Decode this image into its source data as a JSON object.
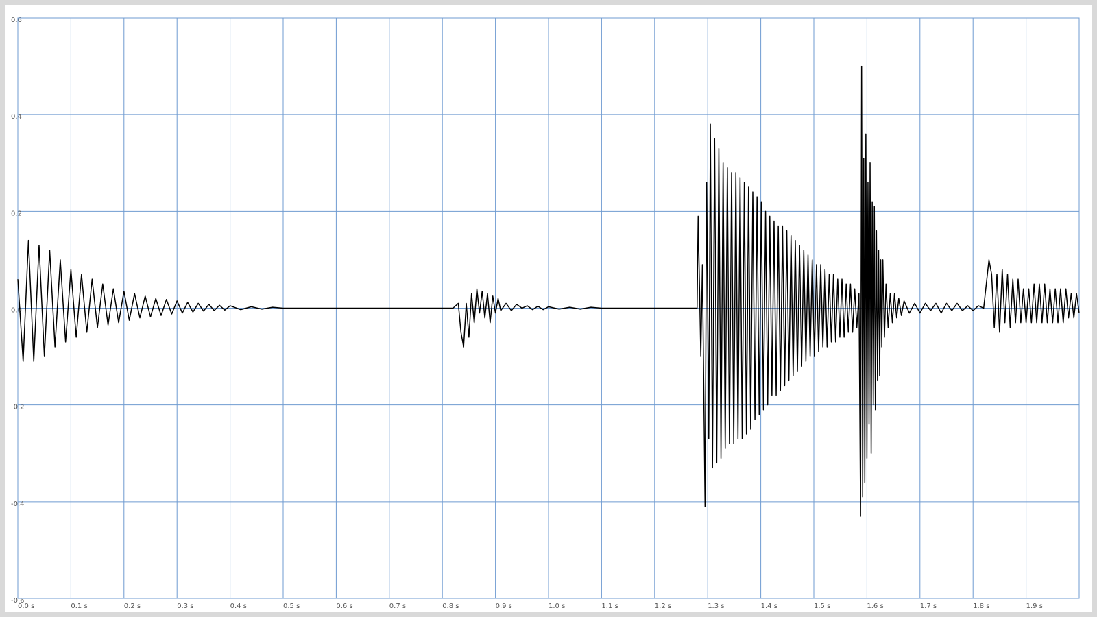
{
  "chart_data": {
    "type": "line",
    "x": [
      0,
      0.01,
      0.02,
      0.03,
      0.04,
      0.05,
      0.06,
      0.07,
      0.08,
      0.09,
      0.1,
      0.11,
      0.12,
      0.13,
      0.14,
      0.15,
      0.16,
      0.17,
      0.18,
      0.19,
      0.2,
      0.21,
      0.22,
      0.23,
      0.24,
      0.25,
      0.26,
      0.27,
      0.28,
      0.29,
      0.3,
      0.31,
      0.32,
      0.33,
      0.34,
      0.35,
      0.36,
      0.37,
      0.38,
      0.39,
      0.4,
      0.42,
      0.44,
      0.46,
      0.48,
      0.5,
      0.6,
      0.7,
      0.82,
      0.83,
      0.835,
      0.84,
      0.845,
      0.85,
      0.855,
      0.86,
      0.865,
      0.87,
      0.875,
      0.88,
      0.885,
      0.89,
      0.895,
      0.9,
      0.905,
      0.91,
      0.92,
      0.93,
      0.94,
      0.95,
      0.96,
      0.97,
      0.98,
      0.99,
      1.0,
      1.02,
      1.04,
      1.06,
      1.08,
      1.1,
      1.2,
      1.28,
      1.282,
      1.287,
      1.29,
      1.295,
      1.298,
      1.302,
      1.305,
      1.309,
      1.313,
      1.317,
      1.321,
      1.325,
      1.329,
      1.333,
      1.337,
      1.341,
      1.345,
      1.349,
      1.353,
      1.357,
      1.361,
      1.365,
      1.369,
      1.373,
      1.377,
      1.381,
      1.385,
      1.389,
      1.393,
      1.397,
      1.401,
      1.405,
      1.409,
      1.413,
      1.417,
      1.421,
      1.425,
      1.429,
      1.433,
      1.437,
      1.441,
      1.445,
      1.449,
      1.453,
      1.457,
      1.461,
      1.465,
      1.469,
      1.473,
      1.477,
      1.481,
      1.485,
      1.489,
      1.493,
      1.497,
      1.501,
      1.505,
      1.509,
      1.513,
      1.517,
      1.521,
      1.525,
      1.529,
      1.533,
      1.537,
      1.541,
      1.545,
      1.549,
      1.553,
      1.557,
      1.561,
      1.565,
      1.569,
      1.573,
      1.577,
      1.581,
      1.585,
      1.588,
      1.59,
      1.592,
      1.594,
      1.596,
      1.598,
      1.6,
      1.602,
      1.604,
      1.606,
      1.608,
      1.61,
      1.612,
      1.614,
      1.616,
      1.618,
      1.62,
      1.622,
      1.624,
      1.626,
      1.628,
      1.63,
      1.633,
      1.636,
      1.64,
      1.644,
      1.648,
      1.652,
      1.656,
      1.66,
      1.665,
      1.67,
      1.68,
      1.69,
      1.7,
      1.71,
      1.72,
      1.73,
      1.74,
      1.75,
      1.76,
      1.77,
      1.78,
      1.79,
      1.8,
      1.81,
      1.82,
      1.83,
      1.835,
      1.84,
      1.845,
      1.85,
      1.855,
      1.86,
      1.865,
      1.87,
      1.875,
      1.88,
      1.885,
      1.89,
      1.895,
      1.9,
      1.905,
      1.91,
      1.915,
      1.92,
      1.925,
      1.93,
      1.935,
      1.94,
      1.945,
      1.95,
      1.955,
      1.96,
      1.965,
      1.97,
      1.975,
      1.98,
      1.985,
      1.99,
      1.995,
      2.0
    ],
    "values": [
      0.06,
      -0.11,
      0.14,
      -0.11,
      0.13,
      -0.1,
      0.12,
      -0.08,
      0.1,
      -0.07,
      0.08,
      -0.06,
      0.07,
      -0.05,
      0.06,
      -0.04,
      0.05,
      -0.035,
      0.04,
      -0.03,
      0.035,
      -0.025,
      0.03,
      -0.02,
      0.025,
      -0.018,
      0.02,
      -0.015,
      0.018,
      -0.012,
      0.015,
      -0.01,
      0.012,
      -0.008,
      0.01,
      -0.006,
      0.008,
      -0.005,
      0.006,
      -0.004,
      0.005,
      -0.003,
      0.003,
      -0.002,
      0.002,
      0,
      0,
      0,
      0,
      0.01,
      -0.05,
      -0.08,
      0.01,
      -0.06,
      0.03,
      -0.03,
      0.04,
      -0.01,
      0.035,
      -0.02,
      0.03,
      -0.03,
      0.025,
      -0.01,
      0.02,
      -0.005,
      0.01,
      -0.005,
      0.008,
      0,
      0.005,
      -0.003,
      0.004,
      -0.003,
      0.003,
      -0.002,
      0.002,
      -0.002,
      0.002,
      0,
      0,
      0,
      0.19,
      -0.1,
      0.09,
      -0.41,
      0.26,
      -0.27,
      0.38,
      -0.33,
      0.35,
      -0.32,
      0.33,
      -0.31,
      0.3,
      -0.29,
      0.29,
      -0.28,
      0.28,
      -0.28,
      0.28,
      -0.27,
      0.27,
      -0.27,
      0.26,
      -0.26,
      0.25,
      -0.25,
      0.24,
      -0.23,
      0.23,
      -0.22,
      0.22,
      -0.21,
      0.2,
      -0.2,
      0.19,
      -0.18,
      0.18,
      -0.18,
      0.17,
      -0.17,
      0.17,
      -0.16,
      0.16,
      -0.15,
      0.15,
      -0.14,
      0.14,
      -0.13,
      0.13,
      -0.12,
      0.12,
      -0.11,
      0.11,
      -0.1,
      0.1,
      -0.1,
      0.09,
      -0.09,
      0.09,
      -0.08,
      0.08,
      -0.08,
      0.07,
      -0.07,
      0.07,
      -0.07,
      0.06,
      -0.06,
      0.06,
      -0.06,
      0.05,
      -0.05,
      0.05,
      -0.05,
      0.04,
      -0.04,
      0.03,
      -0.43,
      0.5,
      -0.39,
      0.31,
      -0.36,
      0.36,
      -0.31,
      0.26,
      -0.24,
      0.3,
      -0.3,
      0.22,
      -0.2,
      0.21,
      -0.21,
      0.16,
      -0.15,
      0.12,
      -0.14,
      0.1,
      -0.08,
      0.1,
      -0.06,
      0.05,
      -0.04,
      0.03,
      -0.03,
      0.03,
      -0.02,
      0.02,
      -0.015,
      0.015,
      -0.01,
      0.01,
      -0.01,
      0.01,
      -0.005,
      0.01,
      -0.01,
      0.01,
      -0.005,
      0.01,
      -0.005,
      0.005,
      -0.005,
      0.005,
      0,
      0.1,
      0.07,
      -0.04,
      0.07,
      -0.05,
      0.08,
      -0.03,
      0.07,
      -0.04,
      0.06,
      -0.03,
      0.06,
      -0.03,
      0.04,
      -0.03,
      0.04,
      -0.03,
      0.05,
      -0.03,
      0.05,
      -0.03,
      0.05,
      -0.03,
      0.04,
      -0.03,
      0.04,
      -0.03,
      0.04,
      -0.03,
      0.04,
      -0.02,
      0.03,
      -0.02,
      0.03,
      -0.01
    ],
    "color": "#000000",
    "xlim": [
      0,
      2
    ],
    "ylim": [
      -0.6,
      0.6
    ],
    "xticks": [
      {
        "value": 0,
        "label": "0.0 s"
      },
      {
        "value": 0.1,
        "label": "0.1 s"
      },
      {
        "value": 0.2,
        "label": "0.2 s"
      },
      {
        "value": 0.3,
        "label": "0.3 s"
      },
      {
        "value": 0.4,
        "label": "0.4 s"
      },
      {
        "value": 0.5,
        "label": "0.5 s"
      },
      {
        "value": 0.6,
        "label": "0.6 s"
      },
      {
        "value": 0.7,
        "label": "0.7 s"
      },
      {
        "value": 0.8,
        "label": "0.8 s"
      },
      {
        "value": 0.9,
        "label": "0.9 s"
      },
      {
        "value": 1.0,
        "label": "1.0 s"
      },
      {
        "value": 1.1,
        "label": "1.1 s"
      },
      {
        "value": 1.2,
        "label": "1.2 s"
      },
      {
        "value": 1.3,
        "label": "1.3 s"
      },
      {
        "value": 1.4,
        "label": "1.4 s"
      },
      {
        "value": 1.5,
        "label": "1.5 s"
      },
      {
        "value": 1.6,
        "label": "1.6 s"
      },
      {
        "value": 1.7,
        "label": "1.7 s"
      },
      {
        "value": 1.8,
        "label": "1.8 s"
      },
      {
        "value": 1.9,
        "label": "1.9 s"
      }
    ],
    "yticks": [
      -0.6,
      -0.4,
      -0.2,
      {
        "value": 0,
        "label": "0.0"
      },
      0.2,
      0.4,
      0.6
    ],
    "grid": true
  }
}
